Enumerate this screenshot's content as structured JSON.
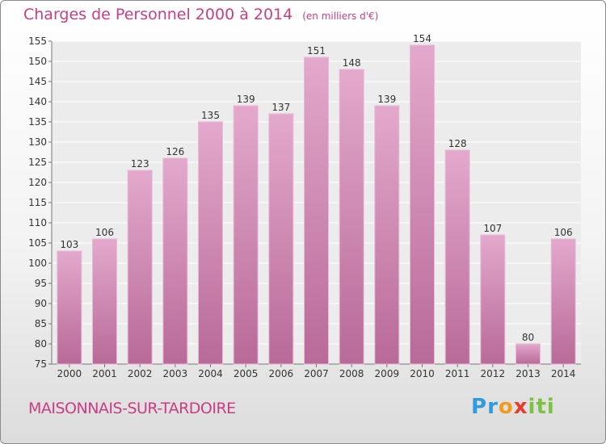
{
  "title": "Charges de Personnel 2000 à 2014",
  "unit_label": "(en milliers d'€)",
  "commune": "MAISONNAIS-SUR-TARDOIRE",
  "logo": {
    "letters": [
      {
        "char": "P",
        "color": "#2f9be0"
      },
      {
        "char": "r",
        "color": "#2f9be0"
      },
      {
        "char": "o",
        "color": "#f29a1c"
      },
      {
        "char": "x",
        "color": "#e63b2a"
      },
      {
        "char": "i",
        "color": "#7cc242"
      },
      {
        "char": "t",
        "color": "#7cc242"
      },
      {
        "char": "i",
        "color": "#7cc242"
      }
    ]
  },
  "colors": {
    "bar": "#d58fbc",
    "bar_edge": "#e9b9d6",
    "text_accent": "#cc3c84"
  },
  "chart_data": {
    "type": "bar",
    "categories": [
      "2000",
      "2001",
      "2002",
      "2003",
      "2004",
      "2005",
      "2006",
      "2007",
      "2008",
      "2009",
      "2010",
      "2011",
      "2012",
      "2013",
      "2014"
    ],
    "values": [
      103,
      106,
      123,
      126,
      135,
      139,
      137,
      151,
      148,
      139,
      154,
      128,
      107,
      80,
      106
    ],
    "ylim": [
      75,
      155
    ],
    "yticks": [
      75,
      80,
      85,
      90,
      95,
      100,
      105,
      110,
      115,
      120,
      125,
      130,
      135,
      140,
      145,
      150,
      155
    ],
    "grid": true
  }
}
